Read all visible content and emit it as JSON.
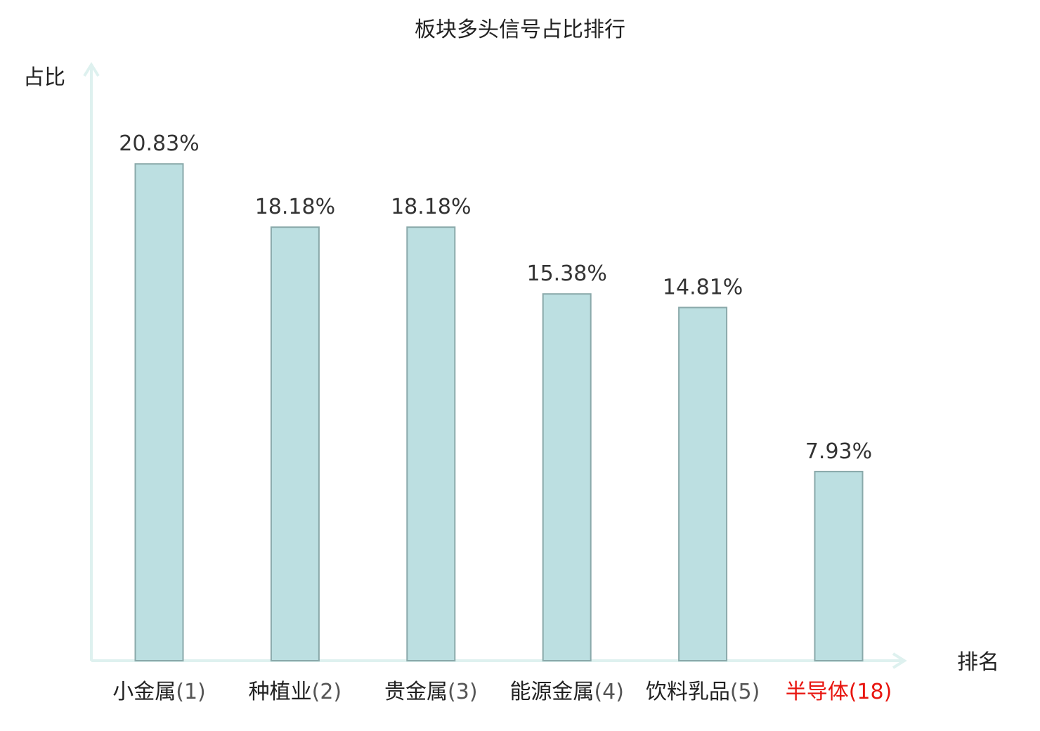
{
  "chart_data": {
    "type": "bar",
    "title": "板块多头信号占比排行",
    "xlabel": "排名",
    "ylabel": "占比",
    "categories": [
      {
        "name": "小金属",
        "rank": "(1)",
        "highlight": false
      },
      {
        "name": "种植业",
        "rank": "(2)",
        "highlight": false
      },
      {
        "name": "贵金属",
        "rank": "(3)",
        "highlight": false
      },
      {
        "name": "能源金属",
        "rank": "(4)",
        "highlight": false
      },
      {
        "name": "饮料乳品",
        "rank": "(5)",
        "highlight": false
      },
      {
        "name": "半导体",
        "rank": "(18)",
        "highlight": true
      }
    ],
    "values": [
      20.83,
      18.18,
      18.18,
      15.38,
      14.81,
      7.93
    ],
    "value_labels": [
      "20.83%",
      "18.18%",
      "18.18%",
      "15.38%",
      "14.81%",
      "7.93%"
    ],
    "ylim": [
      0,
      25
    ],
    "grid": false,
    "colors": {
      "bar_fill": "#bcdfe1",
      "bar_stroke": "#8aa9aa",
      "axis": "#def1ef",
      "label_text": "#222222",
      "rank_text": "#555555",
      "highlight_text": "#e8150f"
    }
  }
}
